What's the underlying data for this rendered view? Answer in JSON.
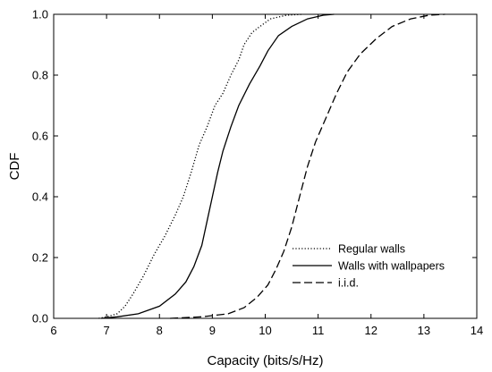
{
  "chart_data": {
    "type": "line",
    "title": "",
    "xlabel": "Capacity (bits/s/Hz)",
    "ylabel": "CDF",
    "xlim": [
      6,
      14
    ],
    "ylim": [
      0,
      1
    ],
    "xticks": [
      6,
      7,
      8,
      9,
      10,
      11,
      12,
      13,
      14
    ],
    "yticks": [
      0,
      0.2,
      0.4,
      0.6,
      0.8,
      1
    ],
    "x_tick_labels": [
      "6",
      "7",
      "8",
      "9",
      "10",
      "11",
      "12",
      "13",
      "14"
    ],
    "y_tick_labels": [
      "0.0",
      "0.2",
      "0.4",
      "0.6",
      "0.8",
      "1.0"
    ],
    "grid": false,
    "legend_position": "lower-right",
    "series": [
      {
        "name": "Regular walls",
        "style": "dotted",
        "color": "#000000",
        "points": [
          [
            6.85,
            0.0
          ],
          [
            7.0,
            0.005
          ],
          [
            7.2,
            0.015
          ],
          [
            7.35,
            0.04
          ],
          [
            7.5,
            0.08
          ],
          [
            7.7,
            0.14
          ],
          [
            7.9,
            0.21
          ],
          [
            8.1,
            0.27
          ],
          [
            8.3,
            0.34
          ],
          [
            8.45,
            0.4
          ],
          [
            8.6,
            0.48
          ],
          [
            8.75,
            0.57
          ],
          [
            8.9,
            0.63
          ],
          [
            9.05,
            0.7
          ],
          [
            9.2,
            0.74
          ],
          [
            9.35,
            0.8
          ],
          [
            9.5,
            0.85
          ],
          [
            9.6,
            0.9
          ],
          [
            9.75,
            0.94
          ],
          [
            9.9,
            0.96
          ],
          [
            10.1,
            0.985
          ],
          [
            10.4,
            0.997
          ],
          [
            10.7,
            1.0
          ]
        ]
      },
      {
        "name": "Walls with wallpapers",
        "style": "solid",
        "color": "#000000",
        "points": [
          [
            6.9,
            0.0
          ],
          [
            7.2,
            0.005
          ],
          [
            7.6,
            0.015
          ],
          [
            8.0,
            0.04
          ],
          [
            8.3,
            0.08
          ],
          [
            8.5,
            0.12
          ],
          [
            8.65,
            0.17
          ],
          [
            8.8,
            0.24
          ],
          [
            8.9,
            0.32
          ],
          [
            9.0,
            0.4
          ],
          [
            9.1,
            0.48
          ],
          [
            9.2,
            0.55
          ],
          [
            9.35,
            0.63
          ],
          [
            9.5,
            0.7
          ],
          [
            9.7,
            0.77
          ],
          [
            9.9,
            0.83
          ],
          [
            10.05,
            0.88
          ],
          [
            10.25,
            0.93
          ],
          [
            10.5,
            0.96
          ],
          [
            10.8,
            0.985
          ],
          [
            11.1,
            0.997
          ],
          [
            11.3,
            1.0
          ]
        ]
      },
      {
        "name": "i.i.d.",
        "style": "dashed",
        "color": "#000000",
        "points": [
          [
            8.2,
            0.0
          ],
          [
            8.8,
            0.005
          ],
          [
            9.3,
            0.015
          ],
          [
            9.6,
            0.035
          ],
          [
            9.85,
            0.07
          ],
          [
            10.05,
            0.11
          ],
          [
            10.2,
            0.16
          ],
          [
            10.35,
            0.22
          ],
          [
            10.5,
            0.3
          ],
          [
            10.65,
            0.4
          ],
          [
            10.8,
            0.5
          ],
          [
            10.95,
            0.58
          ],
          [
            11.15,
            0.66
          ],
          [
            11.35,
            0.74
          ],
          [
            11.55,
            0.81
          ],
          [
            11.8,
            0.87
          ],
          [
            12.1,
            0.92
          ],
          [
            12.4,
            0.96
          ],
          [
            12.75,
            0.985
          ],
          [
            13.1,
            0.997
          ],
          [
            13.4,
            1.0
          ]
        ]
      }
    ]
  }
}
